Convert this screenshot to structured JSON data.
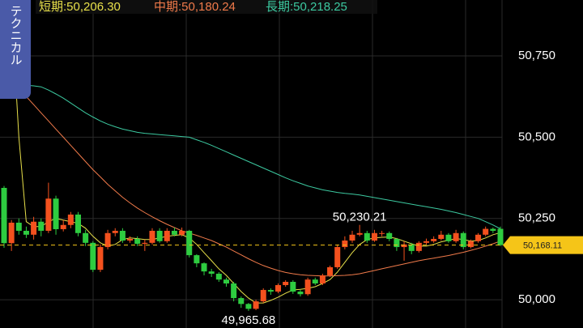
{
  "chart_data": {
    "type": "candlestick",
    "button_label": "テクニカル",
    "ylim": [
      49913,
      50922
    ],
    "yticks": [
      {
        "value": 50000,
        "label": "50,000"
      },
      {
        "value": 50250,
        "label": "50,250"
      },
      {
        "value": 50500,
        "label": "50,500"
      },
      {
        "value": 50750,
        "label": "50,750"
      }
    ],
    "grid": true,
    "up_color": "#f4511e",
    "down_color": "#2ecc40",
    "open": [
      50344,
      50174,
      50237,
      50212,
      50200,
      50240,
      50212,
      50311,
      50217,
      50230,
      50262,
      50205,
      50175,
      50092,
      50162,
      50205,
      50212,
      50182,
      50187,
      50172,
      50175,
      50212,
      50180,
      50212,
      50200,
      50212,
      50137,
      50112,
      50087,
      50080,
      50062,
      50050,
      50005,
      49987,
      49972,
      49995,
      50030,
      50025,
      50045,
      50055,
      50025,
      50017,
      50062,
      50050,
      50075,
      50100,
      50162,
      50182,
      50200,
      50205,
      50182,
      50205,
      50205,
      50187,
      50162,
      50170,
      50150,
      50175,
      50180,
      50187,
      50200,
      50180,
      50205,
      50162,
      50180,
      50200,
      50218,
      50218
    ],
    "high": [
      50350,
      50245,
      50250,
      50225,
      50255,
      50250,
      50360,
      50320,
      50245,
      50270,
      50270,
      50215,
      50180,
      50170,
      50215,
      50220,
      50220,
      50195,
      50195,
      50185,
      50220,
      50220,
      50220,
      50222,
      50222,
      50215,
      50140,
      50115,
      50095,
      50085,
      50068,
      50055,
      50010,
      49990,
      50000,
      50035,
      50035,
      50050,
      50060,
      50060,
      50030,
      50068,
      50068,
      50080,
      50105,
      50170,
      50195,
      50212,
      50230.21,
      50212,
      50215,
      50212,
      50210,
      50190,
      50180,
      50175,
      50180,
      50188,
      50195,
      50212,
      50205,
      50215,
      50210,
      50185,
      50205,
      50225,
      50222,
      50225
    ],
    "low": [
      50160,
      50150,
      50200,
      50190,
      50185,
      50195,
      50205,
      50200,
      50210,
      50220,
      50195,
      50165,
      50085,
      50085,
      50155,
      50195,
      50175,
      50175,
      50165,
      50150,
      50170,
      50175,
      50175,
      50195,
      50195,
      50130,
      50100,
      50075,
      50070,
      50055,
      50040,
      49995,
      49975,
      49965.68,
      49968,
      49990,
      50015,
      50020,
      50040,
      50018,
      50010,
      50012,
      50045,
      50045,
      50070,
      50095,
      50155,
      50175,
      50195,
      50175,
      50178,
      50195,
      50180,
      50150,
      50120,
      50140,
      50145,
      50170,
      50175,
      50182,
      50175,
      50175,
      50155,
      50158,
      50175,
      50195,
      50205,
      50165
    ],
    "close": [
      50174,
      50237,
      50212,
      50200,
      50240,
      50212,
      50311,
      50217,
      50230,
      50262,
      50205,
      50175,
      50092,
      50162,
      50205,
      50212,
      50182,
      50187,
      50172,
      50175,
      50212,
      50180,
      50212,
      50200,
      50212,
      50137,
      50112,
      50087,
      50080,
      50062,
      50050,
      50005,
      49987,
      49972,
      49995,
      50030,
      50025,
      50045,
      50055,
      50025,
      50017,
      50062,
      50050,
      50075,
      50100,
      50162,
      50182,
      50200,
      50205,
      50182,
      50205,
      50205,
      50187,
      50162,
      50170,
      50150,
      50175,
      50180,
      50187,
      50200,
      50180,
      50205,
      50162,
      50180,
      50200,
      50218,
      50212,
      50168.11
    ],
    "series": [
      {
        "name": "短期:50,206.30",
        "color": "#e8e04a",
        "values": [
          null,
          50900,
          50500,
          50240,
          50225,
          50225,
          50240,
          50250,
          50245,
          50240,
          50235,
          50220,
          50195,
          50175,
          50165,
          50170,
          50185,
          50190,
          50188,
          50185,
          50185,
          50190,
          50195,
          50198,
          50200,
          50190,
          50170,
          50145,
          50120,
          50095,
          50075,
          50050,
          50025,
          50005,
          49990,
          49990,
          49998,
          50008,
          50020,
          50030,
          50032,
          50035,
          50040,
          50050,
          50062,
          50085,
          50115,
          50145,
          50170,
          50185,
          50190,
          50192,
          50193,
          50188,
          50180,
          50172,
          50165,
          50165,
          50170,
          50178,
          50183,
          50188,
          50185,
          50180,
          50182,
          50190,
          50200,
          50206.3
        ]
      },
      {
        "name": "中期:50,180.24",
        "color": "#f07a4a",
        "values": [
          50685,
          50670,
          50650,
          50625,
          50600,
          50575,
          50550,
          50525,
          50500,
          50475,
          50450,
          50425,
          50400,
          50378,
          50355,
          50335,
          50315,
          50298,
          50282,
          50268,
          50255,
          50243,
          50232,
          50222,
          50212,
          50205,
          50198,
          50190,
          50182,
          50172,
          50162,
          50150,
          50138,
          50126,
          50115,
          50105,
          50097,
          50090,
          50084,
          50080,
          50077,
          50075,
          50074,
          50073,
          50073,
          50074,
          50075,
          50077,
          50080,
          50085,
          50090,
          50095,
          50100,
          50105,
          50110,
          50115,
          50120,
          50124,
          50128,
          50132,
          50136,
          50141,
          50146,
          50152,
          50158,
          50165,
          50172,
          50180.24
        ]
      },
      {
        "name": "長期:50,218.25",
        "color": "#3cc9a0",
        "values": [
          50655,
          50658,
          50660,
          50660,
          50658,
          50655,
          50645,
          50633,
          50620,
          50605,
          50590,
          50575,
          50562,
          50550,
          50540,
          50532,
          50525,
          50520,
          50515,
          50512,
          50510,
          50508,
          50506,
          50504,
          50502,
          50500,
          50492,
          50484,
          50475,
          50465,
          50455,
          50445,
          50435,
          50425,
          50415,
          50405,
          50395,
          50385,
          50375,
          50366,
          50358,
          50350,
          50344,
          50338,
          50334,
          50330,
          50327,
          50325,
          50322,
          50318,
          50314,
          50310,
          50306,
          50302,
          50298,
          50294,
          50290,
          50286,
          50282,
          50278,
          50273,
          50268,
          50262,
          50256,
          50250,
          50240,
          50230,
          50218.25
        ]
      }
    ],
    "current_price": {
      "value": 50168.11,
      "label": "50,168.11"
    },
    "current_color": "#f5c518",
    "annotations": [
      {
        "value": 50230.21,
        "label": "50,230.21",
        "at": "high"
      },
      {
        "value": 49965.68,
        "label": "49,965.68",
        "at": "low"
      }
    ]
  }
}
